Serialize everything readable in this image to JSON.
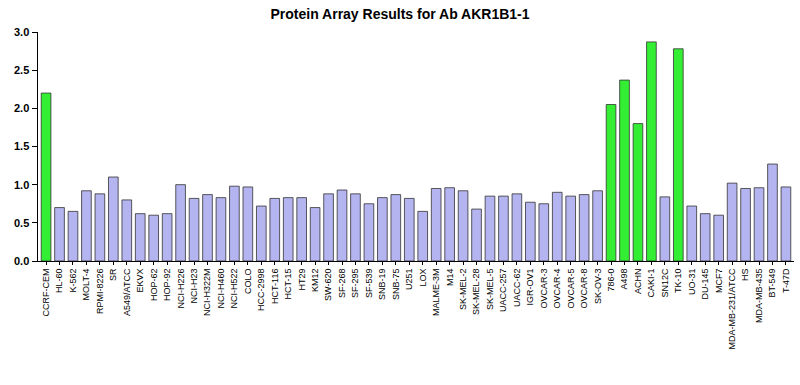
{
  "chart_data": {
    "type": "bar",
    "title": "Protein Array Results for Ab AKR1B1-1",
    "categories": [
      "CCRF-CEM",
      "HL-60",
      "K-562",
      "MOLT-4",
      "RPMI-8226",
      "SR",
      "A549/ATCC",
      "EKVX",
      "HOP-62",
      "HOP-92",
      "NCI-H226",
      "NCI-H23",
      "NCI-H322M",
      "NCI-H460",
      "NCI-H522",
      "COLO",
      "HCC-2998",
      "HCT-116",
      "HCT-15",
      "HT29",
      "KM12",
      "SW-620",
      "SF-268",
      "SF-295",
      "SF-539",
      "SNB-19",
      "SNB-75",
      "U251",
      "LOX",
      "MALME-3M",
      "M14",
      "SK-MEL-2",
      "SK-MEL-28",
      "SK-MEL-5",
      "UACC-257",
      "UACC-62",
      "IGR-OV1",
      "OVCAR-3",
      "OVCAR-4",
      "OVCAR-5",
      "OVCAR-8",
      "SK-OV-3",
      "786-0",
      "A498",
      "ACHN",
      "CAKI-1",
      "SN12C",
      "TK-10",
      "UO-31",
      "DU-145",
      "MCF7",
      "MDA-MB-231/ATCC",
      "HS",
      "MDA-MB-435",
      "BT-549",
      "T-47D"
    ],
    "values": [
      2.2,
      0.7,
      0.65,
      0.92,
      0.88,
      1.1,
      0.8,
      0.62,
      0.6,
      0.62,
      1.0,
      0.82,
      0.87,
      0.83,
      0.98,
      0.97,
      0.72,
      0.82,
      0.83,
      0.83,
      0.7,
      0.88,
      0.93,
      0.88,
      0.75,
      0.83,
      0.87,
      0.82,
      0.65,
      0.95,
      0.96,
      0.92,
      0.68,
      0.85,
      0.85,
      0.88,
      0.77,
      0.75,
      0.9,
      0.85,
      0.87,
      0.92,
      2.05,
      2.37,
      1.8,
      2.87,
      0.84,
      2.78,
      0.72,
      0.62,
      0.6,
      1.02,
      0.95,
      0.96,
      1.27,
      0.97
    ],
    "colors": [
      "#33ee33",
      "#b4b4f0",
      "#b4b4f0",
      "#b4b4f0",
      "#b4b4f0",
      "#b4b4f0",
      "#b4b4f0",
      "#b4b4f0",
      "#b4b4f0",
      "#b4b4f0",
      "#b4b4f0",
      "#b4b4f0",
      "#b4b4f0",
      "#b4b4f0",
      "#b4b4f0",
      "#b4b4f0",
      "#b4b4f0",
      "#b4b4f0",
      "#b4b4f0",
      "#b4b4f0",
      "#b4b4f0",
      "#b4b4f0",
      "#b4b4f0",
      "#b4b4f0",
      "#b4b4f0",
      "#b4b4f0",
      "#b4b4f0",
      "#b4b4f0",
      "#b4b4f0",
      "#b4b4f0",
      "#b4b4f0",
      "#b4b4f0",
      "#b4b4f0",
      "#b4b4f0",
      "#b4b4f0",
      "#b4b4f0",
      "#b4b4f0",
      "#b4b4f0",
      "#b4b4f0",
      "#b4b4f0",
      "#b4b4f0",
      "#b4b4f0",
      "#33ee33",
      "#33ee33",
      "#33ee33",
      "#33ee33",
      "#b4b4f0",
      "#33ee33",
      "#b4b4f0",
      "#b4b4f0",
      "#b4b4f0",
      "#b4b4f0",
      "#b4b4f0",
      "#b4b4f0",
      "#b4b4f0",
      "#b4b4f0"
    ],
    "ylim": [
      0,
      3
    ],
    "yticks": [
      {
        "value": 0,
        "label": "0.0"
      },
      {
        "value": 0.5,
        "label": "0.5"
      },
      {
        "value": 1,
        "label": "1.0"
      },
      {
        "value": 1.5,
        "label": "1.5"
      },
      {
        "value": 2,
        "label": "2.0"
      },
      {
        "value": 2.5,
        "label": "2.5"
      },
      {
        "value": 3,
        "label": "3.0"
      }
    ],
    "grid": false
  }
}
